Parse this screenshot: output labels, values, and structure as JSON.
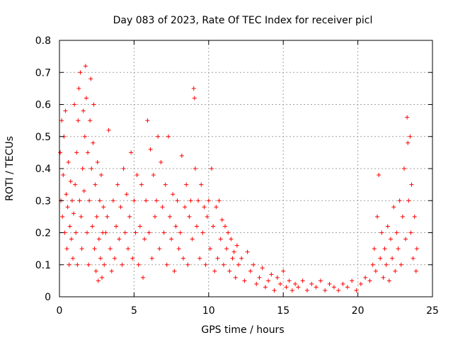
{
  "chart_data": {
    "type": "scatter",
    "title": "Day 083 of 2023, Rate Of TEC Index for receiver picl",
    "xlabel": "GPS time / hours",
    "ylabel": "ROTI / TECUs",
    "xlim": [
      0,
      25
    ],
    "ylim": [
      0,
      0.8
    ],
    "xticks": [
      0,
      5,
      10,
      15,
      20,
      25
    ],
    "yticks": [
      0,
      0.1,
      0.2,
      0.3,
      0.4,
      0.5,
      0.6,
      0.7,
      0.8
    ],
    "xtick_labels": [
      "0",
      "5",
      "10",
      "15",
      "20",
      "25"
    ],
    "ytick_labels": [
      "0",
      "0.1",
      "0.2",
      "0.3",
      "0.4",
      "0.5",
      "0.6",
      "0.7",
      "0.8"
    ],
    "grid": true,
    "marker": "+",
    "marker_color": "#ff0000",
    "series": [
      {
        "name": "ROTI",
        "points": [
          [
            0.05,
            0.45
          ],
          [
            0.1,
            0.3
          ],
          [
            0.15,
            0.55
          ],
          [
            0.2,
            0.25
          ],
          [
            0.25,
            0.38
          ],
          [
            0.3,
            0.5
          ],
          [
            0.35,
            0.2
          ],
          [
            0.4,
            0.58
          ],
          [
            0.45,
            0.32
          ],
          [
            0.5,
            0.15
          ],
          [
            0.55,
            0.28
          ],
          [
            0.6,
            0.42
          ],
          [
            0.65,
            0.1
          ],
          [
            0.7,
            0.22
          ],
          [
            0.75,
            0.36
          ],
          [
            0.8,
            0.18
          ],
          [
            0.85,
            0.3
          ],
          [
            0.9,
            0.12
          ],
          [
            0.95,
            0.26
          ],
          [
            1.0,
            0.6
          ],
          [
            1.05,
            0.35
          ],
          [
            1.1,
            0.2
          ],
          [
            1.15,
            0.45
          ],
          [
            1.2,
            0.1
          ],
          [
            1.25,
            0.55
          ],
          [
            1.3,
            0.65
          ],
          [
            1.35,
            0.3
          ],
          [
            1.4,
            0.7
          ],
          [
            1.45,
            0.25
          ],
          [
            1.5,
            0.15
          ],
          [
            1.55,
            0.4
          ],
          [
            1.6,
            0.58
          ],
          [
            1.65,
            0.33
          ],
          [
            1.7,
            0.5
          ],
          [
            1.75,
            0.72
          ],
          [
            1.8,
            0.62
          ],
          [
            1.85,
            0.2
          ],
          [
            1.9,
            0.45
          ],
          [
            1.95,
            0.1
          ],
          [
            2.0,
            0.3
          ],
          [
            2.05,
            0.55
          ],
          [
            2.1,
            0.68
          ],
          [
            2.15,
            0.4
          ],
          [
            2.2,
            0.22
          ],
          [
            2.25,
            0.48
          ],
          [
            2.3,
            0.6
          ],
          [
            2.35,
            0.15
          ],
          [
            2.4,
            0.35
          ],
          [
            2.45,
            0.08
          ],
          [
            2.5,
            0.25
          ],
          [
            2.55,
            0.42
          ],
          [
            2.6,
            0.05
          ],
          [
            2.65,
            0.18
          ],
          [
            2.7,
            0.3
          ],
          [
            2.75,
            0.12
          ],
          [
            2.8,
            0.38
          ],
          [
            2.85,
            0.06
          ],
          [
            2.9,
            0.2
          ],
          [
            2.95,
            0.28
          ],
          [
            3.0,
            0.1
          ],
          [
            3.1,
            0.2
          ],
          [
            3.2,
            0.25
          ],
          [
            3.3,
            0.52
          ],
          [
            3.4,
            0.15
          ],
          [
            3.5,
            0.08
          ],
          [
            3.6,
            0.3
          ],
          [
            3.7,
            0.12
          ],
          [
            3.8,
            0.22
          ],
          [
            3.9,
            0.35
          ],
          [
            4.0,
            0.18
          ],
          [
            4.1,
            0.28
          ],
          [
            4.2,
            0.1
          ],
          [
            4.3,
            0.4
          ],
          [
            4.4,
            0.2
          ],
          [
            4.5,
            0.32
          ],
          [
            4.6,
            0.15
          ],
          [
            4.7,
            0.25
          ],
          [
            4.8,
            0.45
          ],
          [
            4.9,
            0.12
          ],
          [
            5.0,
            0.3
          ],
          [
            5.1,
            0.2
          ],
          [
            5.2,
            0.38
          ],
          [
            5.3,
            0.1
          ],
          [
            5.4,
            0.22
          ],
          [
            5.5,
            0.35
          ],
          [
            5.6,
            0.06
          ],
          [
            5.7,
            0.18
          ],
          [
            5.8,
            0.3
          ],
          [
            5.9,
            0.55
          ],
          [
            6.0,
            0.2
          ],
          [
            6.1,
            0.46
          ],
          [
            6.2,
            0.12
          ],
          [
            6.3,
            0.38
          ],
          [
            6.4,
            0.25
          ],
          [
            6.5,
            0.3
          ],
          [
            6.6,
            0.5
          ],
          [
            6.7,
            0.15
          ],
          [
            6.8,
            0.42
          ],
          [
            6.9,
            0.28
          ],
          [
            7.0,
            0.2
          ],
          [
            7.1,
            0.35
          ],
          [
            7.2,
            0.1
          ],
          [
            7.3,
            0.5
          ],
          [
            7.4,
            0.25
          ],
          [
            7.5,
            0.18
          ],
          [
            7.6,
            0.32
          ],
          [
            7.7,
            0.08
          ],
          [
            7.8,
            0.22
          ],
          [
            7.9,
            0.3
          ],
          [
            8.0,
            0.15
          ],
          [
            8.1,
            0.2
          ],
          [
            8.2,
            0.44
          ],
          [
            8.3,
            0.12
          ],
          [
            8.4,
            0.28
          ],
          [
            8.5,
            0.35
          ],
          [
            8.6,
            0.1
          ],
          [
            8.7,
            0.25
          ],
          [
            8.8,
            0.3
          ],
          [
            8.9,
            0.18
          ],
          [
            9.0,
            0.65
          ],
          [
            9.05,
            0.62
          ],
          [
            9.1,
            0.4
          ],
          [
            9.2,
            0.22
          ],
          [
            9.3,
            0.3
          ],
          [
            9.4,
            0.12
          ],
          [
            9.5,
            0.35
          ],
          [
            9.6,
            0.2
          ],
          [
            9.7,
            0.28
          ],
          [
            9.8,
            0.1
          ],
          [
            9.9,
            0.25
          ],
          [
            10.0,
            0.3
          ],
          [
            10.1,
            0.15
          ],
          [
            10.2,
            0.4
          ],
          [
            10.3,
            0.22
          ],
          [
            10.4,
            0.08
          ],
          [
            10.5,
            0.28
          ],
          [
            10.6,
            0.12
          ],
          [
            10.7,
            0.3
          ],
          [
            10.8,
            0.18
          ],
          [
            10.9,
            0.24
          ],
          [
            11.0,
            0.1
          ],
          [
            11.1,
            0.22
          ],
          [
            11.2,
            0.15
          ],
          [
            11.3,
            0.2
          ],
          [
            11.4,
            0.08
          ],
          [
            11.5,
            0.18
          ],
          [
            11.6,
            0.12
          ],
          [
            11.7,
            0.14
          ],
          [
            11.8,
            0.06
          ],
          [
            11.9,
            0.16
          ],
          [
            12.0,
            0.1
          ],
          [
            12.2,
            0.12
          ],
          [
            12.4,
            0.05
          ],
          [
            12.6,
            0.14
          ],
          [
            12.8,
            0.08
          ],
          [
            13.0,
            0.1
          ],
          [
            13.2,
            0.04
          ],
          [
            13.4,
            0.06
          ],
          [
            13.6,
            0.09
          ],
          [
            13.8,
            0.03
          ],
          [
            14.0,
            0.05
          ],
          [
            14.2,
            0.07
          ],
          [
            14.4,
            0.02
          ],
          [
            14.6,
            0.06
          ],
          [
            14.8,
            0.04
          ],
          [
            15.0,
            0.08
          ],
          [
            15.2,
            0.03
          ],
          [
            15.4,
            0.05
          ],
          [
            15.6,
            0.02
          ],
          [
            15.8,
            0.04
          ],
          [
            16.0,
            0.03
          ],
          [
            16.3,
            0.05
          ],
          [
            16.6,
            0.02
          ],
          [
            16.9,
            0.04
          ],
          [
            17.2,
            0.03
          ],
          [
            17.5,
            0.05
          ],
          [
            17.8,
            0.02
          ],
          [
            18.1,
            0.04
          ],
          [
            18.4,
            0.03
          ],
          [
            18.7,
            0.02
          ],
          [
            19.0,
            0.04
          ],
          [
            19.3,
            0.03
          ],
          [
            19.6,
            0.05
          ],
          [
            19.9,
            0.02
          ],
          [
            20.2,
            0.04
          ],
          [
            20.5,
            0.06
          ],
          [
            20.8,
            0.05
          ],
          [
            21.0,
            0.1
          ],
          [
            21.1,
            0.15
          ],
          [
            21.2,
            0.08
          ],
          [
            21.3,
            0.25
          ],
          [
            21.4,
            0.38
          ],
          [
            21.5,
            0.12
          ],
          [
            21.6,
            0.2
          ],
          [
            21.7,
            0.06
          ],
          [
            21.8,
            0.15
          ],
          [
            21.9,
            0.1
          ],
          [
            22.0,
            0.22
          ],
          [
            22.1,
            0.05
          ],
          [
            22.2,
            0.18
          ],
          [
            22.3,
            0.12
          ],
          [
            22.4,
            0.28
          ],
          [
            22.5,
            0.08
          ],
          [
            22.6,
            0.2
          ],
          [
            22.7,
            0.15
          ],
          [
            22.8,
            0.3
          ],
          [
            22.9,
            0.1
          ],
          [
            23.0,
            0.25
          ],
          [
            23.1,
            0.4
          ],
          [
            23.2,
            0.18
          ],
          [
            23.3,
            0.56
          ],
          [
            23.35,
            0.48
          ],
          [
            23.4,
            0.3
          ],
          [
            23.5,
            0.5
          ],
          [
            23.55,
            0.2
          ],
          [
            23.6,
            0.35
          ],
          [
            23.7,
            0.12
          ],
          [
            23.8,
            0.25
          ],
          [
            23.9,
            0.08
          ],
          [
            23.95,
            0.15
          ]
        ]
      }
    ]
  }
}
